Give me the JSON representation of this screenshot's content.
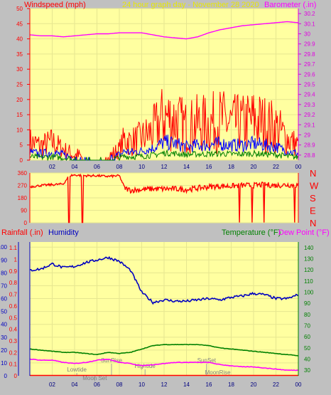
{
  "header": {
    "left_label": "Windspeed (mph)",
    "center_label": "24 hour graph day - November 28 2020",
    "right_label": "Barometer (.in)"
  },
  "colors": {
    "background": "#c0c0c0",
    "plot": "#ffffa0",
    "wind_gust": "#ff0000",
    "wind_avg": "#0000ff",
    "wind_low": "#008000",
    "barometer": "#ff00ff",
    "direction": "#ff0000",
    "humidity": "#0000c0",
    "temperature": "#008000",
    "dew_point": "#ff00ff",
    "tide_text": "#808080",
    "axis_red": "#ff0000",
    "axis_magenta": "#e000e0",
    "axis_blue": "#0000c0",
    "axis_green": "#008000"
  },
  "x_ticks": [
    "02",
    "04",
    "06",
    "08",
    "10",
    "12",
    "14",
    "16",
    "18",
    "20",
    "22",
    "00"
  ],
  "chart_data": [
    {
      "type": "line",
      "title": "24 hour graph day - November 28 2020",
      "y_left_label": "Windspeed (mph)",
      "y_right_label": "Barometer (.in)",
      "y_left_ticks": [
        "0",
        "5",
        "10",
        "15",
        "20",
        "25",
        "30",
        "35",
        "40",
        "45",
        "50"
      ],
      "y_right_ticks": [
        "28.8",
        "28.9",
        "29",
        "29.1",
        "29.2",
        "29.3",
        "29.4",
        "29.5",
        "29.6",
        "29.7",
        "29.8",
        "29.9",
        "30",
        "30.1",
        "30.2"
      ],
      "ylim_left": [
        0,
        50
      ],
      "ylim_right": [
        28.75,
        30.25
      ],
      "x_hours": [
        0,
        24
      ],
      "series": [
        {
          "name": "Windspeed (mph)",
          "x": [
            0,
            1,
            2,
            3,
            4,
            5,
            6,
            7,
            8,
            8.5,
            9,
            10,
            11,
            11.5,
            12,
            13,
            14,
            15,
            16,
            17,
            18,
            19,
            20,
            21,
            22,
            23,
            24
          ],
          "y": [
            5,
            4,
            5,
            3,
            1,
            0,
            0,
            0,
            3,
            6,
            5,
            6,
            8,
            10,
            12,
            11,
            9,
            10,
            10,
            11,
            10,
            10,
            11,
            10,
            9,
            6,
            4
          ]
        },
        {
          "name": "Barometer (.in)",
          "x": [
            0,
            1,
            2,
            3,
            4,
            5,
            6,
            7,
            8,
            9,
            10,
            11,
            12,
            13,
            14,
            15,
            16,
            17,
            18,
            19,
            20,
            21,
            22,
            23,
            24
          ],
          "y": [
            29.99,
            29.98,
            29.98,
            29.97,
            29.98,
            29.99,
            30.0,
            30.0,
            30.01,
            30.01,
            30.01,
            29.99,
            29.97,
            29.96,
            29.95,
            29.97,
            30.01,
            30.04,
            30.06,
            30.08,
            30.09,
            30.1,
            30.11,
            30.12,
            30.11
          ]
        }
      ]
    },
    {
      "type": "line",
      "y_left_ticks": [
        "360",
        "270",
        "180",
        "90",
        "0"
      ],
      "y_right_ticks": [
        "N",
        "W",
        "S",
        "E",
        "N"
      ],
      "ylim": [
        0,
        360
      ],
      "series": [
        {
          "name": "Direction",
          "x": [
            0,
            1,
            2,
            3,
            3.5,
            4,
            5,
            6,
            7,
            8,
            8.5,
            9,
            10,
            11,
            12,
            13,
            14,
            15,
            16,
            17,
            18,
            19,
            20,
            21,
            22,
            23,
            24
          ],
          "y": [
            260,
            270,
            275,
            280,
            340,
            345,
            340,
            340,
            335,
            340,
            250,
            235,
            240,
            245,
            245,
            245,
            240,
            250,
            260,
            265,
            265,
            270,
            270,
            275,
            270,
            275,
            270
          ]
        }
      ]
    },
    {
      "type": "line",
      "legend": [
        "Rainfall (.in)",
        "Humidity",
        "Temperature (°F)",
        "Dew Point (°F)"
      ],
      "y_left_ticks_rain": [
        "0",
        "0.1",
        "0.2",
        "0.3",
        "0.4",
        "0.5",
        "0.6",
        "0.7",
        "0.8",
        "0.9",
        "1",
        "1.1"
      ],
      "y_left_ticks_humidity": [
        "0",
        "10",
        "20",
        "30",
        "40",
        "50",
        "60",
        "70",
        "80",
        "90",
        "100"
      ],
      "y_right_ticks": [
        "30",
        "40",
        "50",
        "60",
        "70",
        "80",
        "90",
        "100",
        "110",
        "120",
        "130",
        "140"
      ],
      "ylim_humidity": [
        0,
        100
      ],
      "ylim_temp": [
        25,
        145
      ],
      "series": [
        {
          "name": "Humidity",
          "x": [
            0,
            1,
            2,
            3,
            4,
            5,
            6,
            7,
            8,
            9,
            10,
            11,
            12,
            13,
            14,
            15,
            16,
            17,
            18,
            19,
            20,
            21,
            22,
            23,
            24
          ],
          "y": [
            82,
            83,
            87,
            84,
            85,
            88,
            90,
            92,
            89,
            82,
            65,
            57,
            59,
            58,
            58,
            59,
            60,
            59,
            61,
            62,
            64,
            63,
            60,
            60,
            63
          ]
        },
        {
          "name": "Temperature (°F)",
          "x": [
            0,
            1,
            2,
            3,
            4,
            5,
            6,
            7,
            8,
            9,
            10,
            11,
            12,
            13,
            14,
            15,
            16,
            17,
            18,
            19,
            20,
            21,
            22,
            23,
            24
          ],
          "y": [
            49,
            48,
            47,
            46,
            46,
            45,
            44,
            46,
            45,
            46,
            49,
            52,
            53,
            53,
            53,
            53,
            52,
            50,
            49,
            48,
            47,
            46,
            45,
            44,
            43
          ]
        },
        {
          "name": "Dew Point (°F)",
          "x": [
            0,
            1,
            2,
            3,
            4,
            5,
            6,
            7,
            8,
            9,
            10,
            11,
            12,
            13,
            14,
            15,
            16,
            17,
            18,
            19,
            20,
            21,
            22,
            23,
            24
          ],
          "y": [
            40,
            39,
            39,
            37,
            36,
            37,
            39,
            40,
            37,
            36,
            34,
            35,
            36,
            37,
            37,
            37,
            37,
            35,
            34,
            33,
            33,
            32,
            31,
            30,
            30
          ]
        },
        {
          "name": "Rainfall (.in)",
          "x": [
            0,
            24
          ],
          "y": [
            0,
            0
          ]
        }
      ],
      "annotations": [
        "Lowtide",
        "Moon Set",
        "SunRise",
        "Hightide",
        "SunSet",
        "MoonRise"
      ]
    }
  ]
}
